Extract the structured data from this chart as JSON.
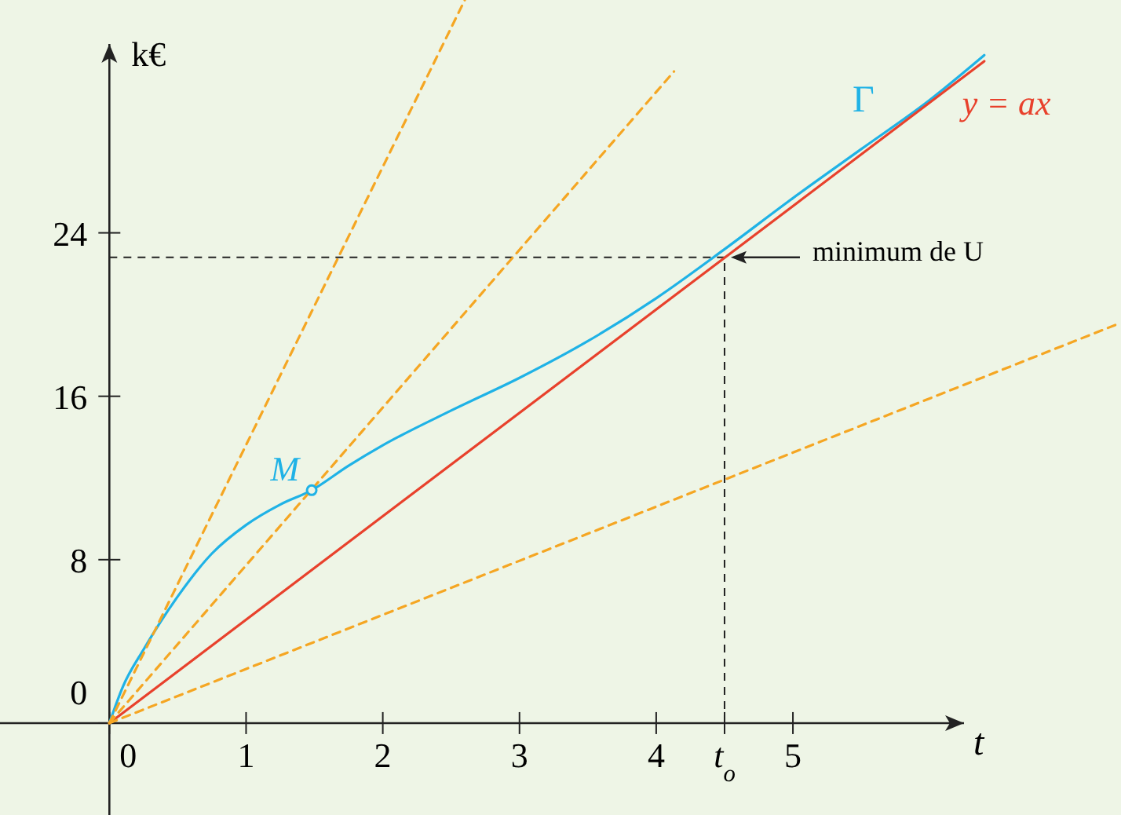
{
  "chart_data": {
    "type": "line",
    "xlabel": "t",
    "ylabel": "k€",
    "xlim": [
      -0.8,
      7.4
    ],
    "ylim": [
      -4.5,
      35.4
    ],
    "xticks": [
      0,
      1,
      2,
      3,
      4,
      {
        "value": 4.5,
        "label": "t$_{o}$"
      },
      5
    ],
    "yticks": [
      0,
      8,
      16,
      24
    ],
    "grid": false,
    "series": [
      {
        "name": "Γ",
        "color": "#1fb2e6",
        "type": "line",
        "line_style": "solid",
        "x": [
          0,
          0.1,
          0.25,
          0.5,
          0.75,
          1,
          1.25,
          1.48,
          1.75,
          2,
          2.5,
          3,
          3.5,
          4,
          4.5,
          5,
          5.5,
          6,
          6.4
        ],
        "values": [
          0,
          1.8,
          3.6,
          6.2,
          8.3,
          9.7,
          10.7,
          11.4,
          12.6,
          13.6,
          15.3,
          16.9,
          18.7,
          20.8,
          23.2,
          25.7,
          28.1,
          30.5,
          32.7
        ]
      },
      {
        "name": "y = ax",
        "color": "#e8412c",
        "line_style": "solid",
        "x": [
          0,
          6.4
        ],
        "values": [
          0,
          32.4
        ]
      },
      {
        "color": "#f5a623",
        "type": "line",
        "line_style": "dashed",
        "x": [
          0,
          2.6
        ],
        "values": [
          0,
          35.4
        ]
      },
      {
        "color": "#f5a623",
        "type": "line",
        "line_style": "dashed",
        "x": [
          0,
          4.13
        ],
        "values": [
          0,
          31.9
        ]
      },
      {
        "color": "#f5a623",
        "type": "line",
        "line_style": "dashed",
        "x": [
          0,
          7.4
        ],
        "values": [
          0,
          19.6
        ]
      },
      {
        "name": "M",
        "color": "#1fb2e6",
        "type": "scatter",
        "marker": "circle",
        "x": [
          1.48
        ],
        "values": [
          11.4
        ]
      }
    ],
    "ref_lines": [
      {
        "axis": "y",
        "value": 22.8,
        "line_style": "dashed",
        "color": "#222222"
      },
      {
        "axis": "x",
        "value": 4.5,
        "line_style": "dashed",
        "color": "#222222"
      }
    ],
    "annotations": [
      {
        "text": "minimum de U",
        "x": 4.5,
        "y": 22.8
      }
    ]
  }
}
